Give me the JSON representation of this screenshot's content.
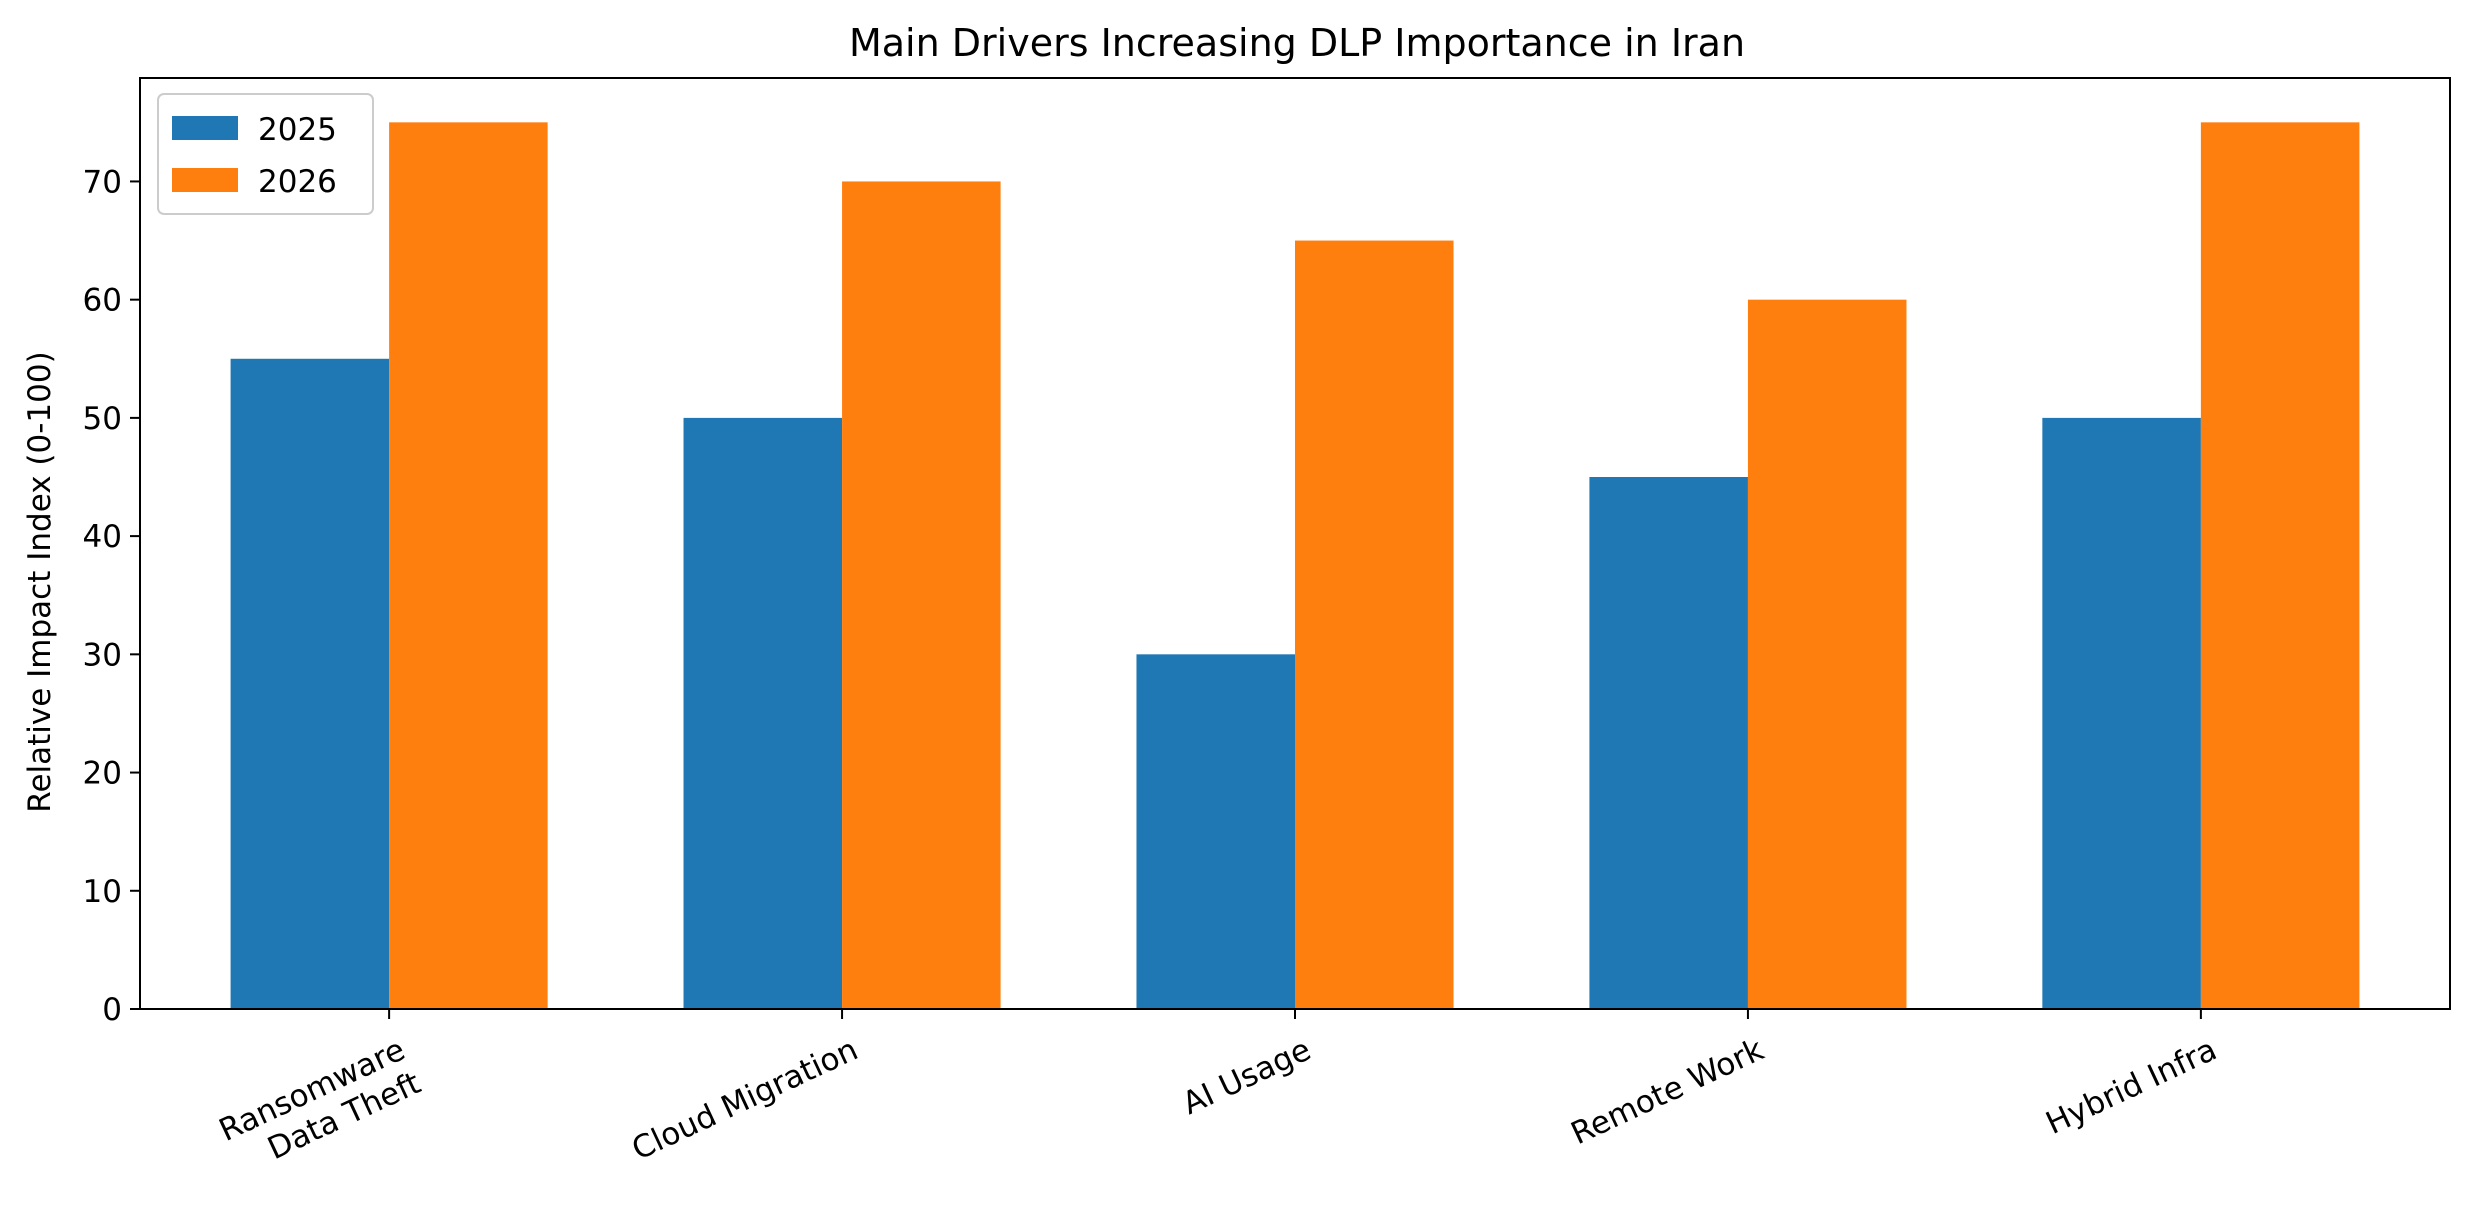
{
  "chart_data": {
    "type": "bar",
    "title": "Main Drivers Increasing DLP Importance in Iran",
    "xlabel": "",
    "ylabel": "Relative Impact Index (0-100)",
    "categories": [
      [
        "Ransomware",
        "Data Theft"
      ],
      [
        "Cloud Migration"
      ],
      [
        "AI Usage"
      ],
      [
        "Remote Work"
      ],
      [
        "Hybrid Infra"
      ]
    ],
    "series": [
      {
        "name": "2025",
        "color": "#1f77b4",
        "values": [
          55,
          50,
          30,
          45,
          50
        ]
      },
      {
        "name": "2026",
        "color": "#ff7f0e",
        "values": [
          75,
          70,
          65,
          60,
          75
        ]
      }
    ],
    "ylim": [
      0,
      78.75
    ],
    "yticks": [
      0,
      10,
      20,
      30,
      40,
      50,
      60,
      70
    ],
    "legend_position": "top-left",
    "grid": false
  }
}
